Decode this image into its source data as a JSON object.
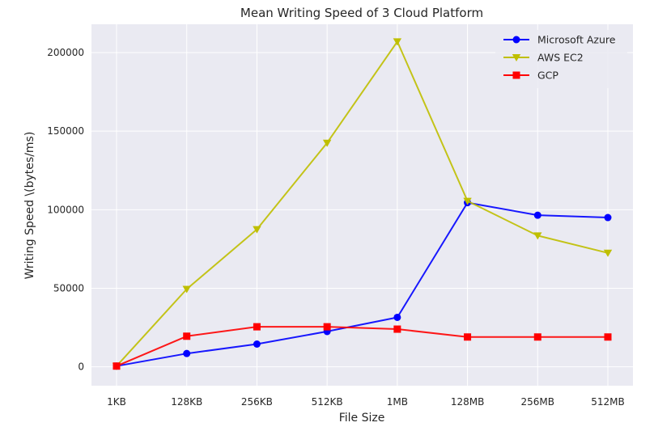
{
  "chart_data": {
    "type": "line",
    "title": "Mean Writing Speed of 3 Cloud Platform",
    "xlabel": "File Size",
    "ylabel": "Writing Speed \\(bytes/ms)",
    "categories": [
      "1KB",
      "128KB",
      "256KB",
      "512KB",
      "1MB",
      "128MB",
      "256MB",
      "512MB"
    ],
    "yticks": [
      0,
      50000,
      100000,
      150000,
      200000
    ],
    "ylim": [
      -12000,
      218000
    ],
    "grid": true,
    "legend_position": "top-right",
    "series": [
      {
        "name": "Microsoft Azure",
        "color": "#0000ff",
        "marker": "circle",
        "values": [
          500,
          8500,
          14500,
          22500,
          31500,
          104500,
          96500,
          95000
        ]
      },
      {
        "name": "AWS EC2",
        "color": "#bfbf00",
        "marker": "triangle-down",
        "values": [
          500,
          49500,
          87500,
          142500,
          207000,
          105500,
          83500,
          72500
        ]
      },
      {
        "name": "GCP",
        "color": "#ff0000",
        "marker": "square",
        "values": [
          500,
          19500,
          25500,
          25500,
          24000,
          19000,
          19000,
          19000
        ]
      }
    ]
  }
}
